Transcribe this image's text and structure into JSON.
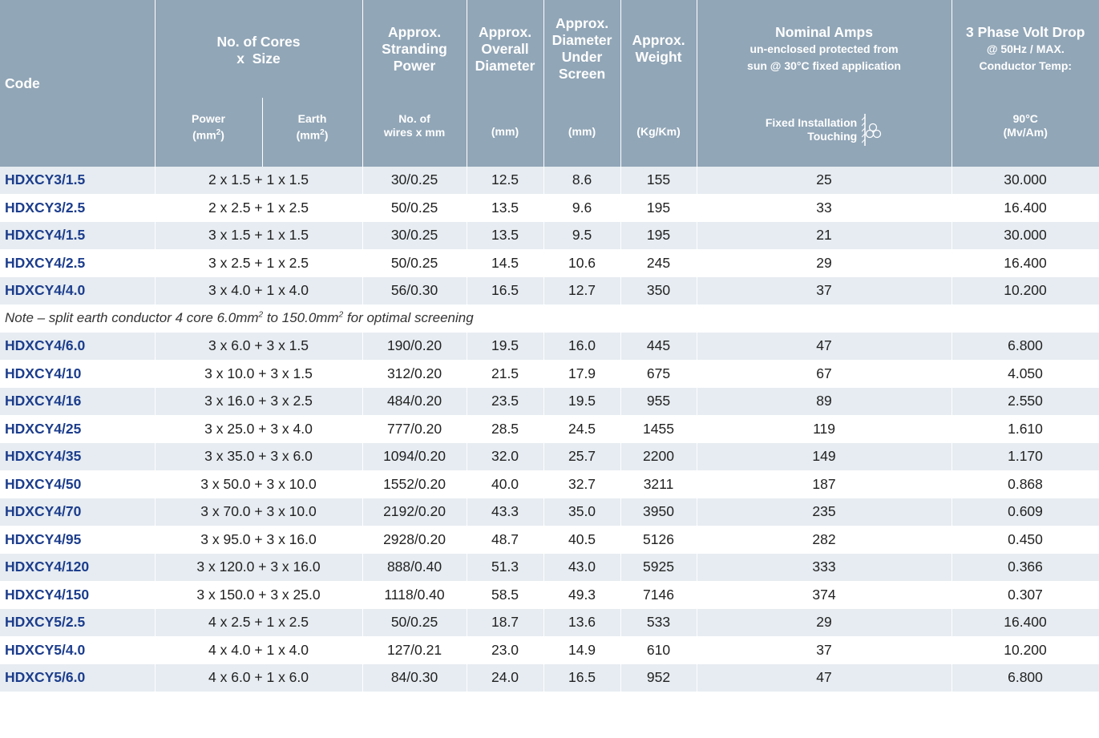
{
  "header": {
    "code": "Code",
    "cores_line1": "No. of Cores",
    "cores_line2": "x  Size",
    "stranding_line1": "Approx.",
    "stranding_line2": "Stranding",
    "stranding_line3": "Power",
    "overall_line1": "Approx.",
    "overall_line2": "Overall",
    "overall_line3": "Diameter",
    "under_line1": "Approx.",
    "under_line2": "Diameter",
    "under_line3": "Under",
    "under_line4": "Screen",
    "weight_line1": "Approx.",
    "weight_line2": "Weight",
    "amps_title": "Nominal Amps",
    "amps_line1": "un-enclosed protected from",
    "amps_line2": "sun @ 30°C fixed application",
    "vd_title": "3 Phase Volt Drop",
    "vd_line1": "@ 50Hz / MAX.",
    "vd_line2": "Conductor Temp:"
  },
  "subheader": {
    "power": "Power",
    "earth": "Earth",
    "unit_mm2": "(mm",
    "sup2": "2",
    "unit_close": ")",
    "wires_line1": "No. of",
    "wires_line2": "wires x mm",
    "mm": "(mm)",
    "mm2": "(mm)",
    "kgkm": "(Kg/Km)",
    "fixed_line1": "Fixed Installation",
    "fixed_line2": "Touching",
    "temp": "90°C",
    "mvam": "(Mv/Am)"
  },
  "icons": {
    "touching": "touching-cables-icon"
  },
  "rows_a": [
    {
      "code": "HDXCY3/1.5",
      "cores": "2 x 1.5 + 1 x 1.5",
      "strand": "30/0.25",
      "od": "12.5",
      "du": "8.6",
      "wt": "155",
      "amps": "25",
      "vd": "30.000"
    },
    {
      "code": "HDXCY3/2.5",
      "cores": "2 x 2.5 + 1 x 2.5",
      "strand": "50/0.25",
      "od": "13.5",
      "du": "9.6",
      "wt": "195",
      "amps": "33",
      "vd": "16.400"
    },
    {
      "code": "HDXCY4/1.5",
      "cores": "3 x 1.5 + 1 x 1.5",
      "strand": "30/0.25",
      "od": "13.5",
      "du": "9.5",
      "wt": "195",
      "amps": "21",
      "vd": "30.000"
    },
    {
      "code": "HDXCY4/2.5",
      "cores": "3 x 2.5 + 1 x 2.5",
      "strand": "50/0.25",
      "od": "14.5",
      "du": "10.6",
      "wt": "245",
      "amps": "29",
      "vd": "16.400"
    },
    {
      "code": "HDXCY4/4.0",
      "cores": "3 x 4.0 + 1 x 4.0",
      "strand": "56/0.30",
      "od": "16.5",
      "du": "12.7",
      "wt": "350",
      "amps": "37",
      "vd": "10.200"
    }
  ],
  "note": {
    "part1": "Note – split earth conductor 4 core 6.0mm",
    "sup1": "2",
    "part2": " to 150.0mm",
    "sup2": "2",
    "part3": " for optimal screening"
  },
  "rows_b": [
    {
      "code": "HDXCY4/6.0",
      "cores": "3 x 6.0 + 3 x 1.5",
      "strand": "190/0.20",
      "od": "19.5",
      "du": "16.0",
      "wt": "445",
      "amps": "47",
      "vd": "6.800"
    },
    {
      "code": "HDXCY4/10",
      "cores": "3 x 10.0 + 3 x 1.5",
      "strand": "312/0.20",
      "od": "21.5",
      "du": "17.9",
      "wt": "675",
      "amps": "67",
      "vd": "4.050"
    },
    {
      "code": "HDXCY4/16",
      "cores": "3 x 16.0 + 3 x 2.5",
      "strand": "484/0.20",
      "od": "23.5",
      "du": "19.5",
      "wt": "955",
      "amps": "89",
      "vd": "2.550"
    },
    {
      "code": "HDXCY4/25",
      "cores": "3 x 25.0 + 3 x 4.0",
      "strand": "777/0.20",
      "od": "28.5",
      "du": "24.5",
      "wt": "1455",
      "amps": "119",
      "vd": "1.610"
    },
    {
      "code": "HDXCY4/35",
      "cores": "3 x 35.0 + 3 x 6.0",
      "strand": "1094/0.20",
      "od": "32.0",
      "du": "25.7",
      "wt": "2200",
      "amps": "149",
      "vd": "1.170"
    },
    {
      "code": "HDXCY4/50",
      "cores": "3 x 50.0 + 3 x 10.0",
      "strand": "1552/0.20",
      "od": "40.0",
      "du": "32.7",
      "wt": "3211",
      "amps": "187",
      "vd": "0.868"
    },
    {
      "code": "HDXCY4/70",
      "cores": "3 x 70.0 + 3 x 10.0",
      "strand": "2192/0.20",
      "od": "43.3",
      "du": "35.0",
      "wt": "3950",
      "amps": "235",
      "vd": "0.609"
    },
    {
      "code": "HDXCY4/95",
      "cores": "3 x 95.0 + 3 x 16.0",
      "strand": "2928/0.20",
      "od": "48.7",
      "du": "40.5",
      "wt": "5126",
      "amps": "282",
      "vd": "0.450"
    },
    {
      "code": "HDXCY4/120",
      "cores": "3 x 120.0 + 3 x 16.0",
      "strand": "888/0.40",
      "od": "51.3",
      "du": "43.0",
      "wt": "5925",
      "amps": "333",
      "vd": "0.366"
    },
    {
      "code": "HDXCY4/150",
      "cores": "3 x 150.0 + 3 x 25.0",
      "strand": "1118/0.40",
      "od": "58.5",
      "du": "49.3",
      "wt": "7146",
      "amps": "374",
      "vd": "0.307"
    },
    {
      "code": "HDXCY5/2.5",
      "cores": "4 x 2.5 + 1 x 2.5",
      "strand": "50/0.25",
      "od": "18.7",
      "du": "13.6",
      "wt": "533",
      "amps": "29",
      "vd": "16.400"
    },
    {
      "code": "HDXCY5/4.0",
      "cores": "4 x 4.0 + 1 x 4.0",
      "strand": "127/0.21",
      "od": "23.0",
      "du": "14.9",
      "wt": "610",
      "amps": "37",
      "vd": "10.200"
    },
    {
      "code": "HDXCY5/6.0",
      "cores": "4 x 6.0 + 1 x 6.0",
      "strand": "84/0.30",
      "od": "24.0",
      "du": "16.5",
      "wt": "952",
      "amps": "47",
      "vd": "6.800"
    }
  ],
  "colors": {
    "header_bg": "#91a6b7",
    "shade_row": "#e6ecf1",
    "code_text": "#1c3d8c"
  }
}
